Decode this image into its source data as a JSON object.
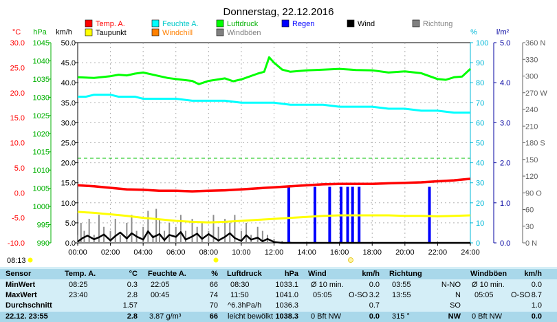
{
  "chart_data": {
    "type": "line",
    "title": "Donnerstag, 22.12.2016",
    "legend": [
      {
        "name": "Temp. A.",
        "color": "#ff0000"
      },
      {
        "name": "Feuchte A.",
        "color": "#00ffff"
      },
      {
        "name": "Luftdruck",
        "color": "#00ff00"
      },
      {
        "name": "Regen",
        "color": "#0000ff"
      },
      {
        "name": "Wind",
        "color": "#000000"
      },
      {
        "name": "Richtung",
        "color": "#808080"
      },
      {
        "name": "Taupunkt",
        "color": "#ffff00"
      },
      {
        "name": "Windchill",
        "color": "#ff8000"
      },
      {
        "name": "Windböen",
        "color": "#808080"
      }
    ],
    "axes": {
      "temp": {
        "unit": "°C",
        "ticks": [
          "30.0",
          "25.0",
          "20.0",
          "15.0",
          "10.0",
          "5.0",
          "0.0",
          "-5.0",
          "-10.0"
        ],
        "range": [
          -10,
          30
        ],
        "color": "#ff0000"
      },
      "pressure": {
        "unit": "hPa",
        "ticks": [
          "1045",
          "1040",
          "1035",
          "1030",
          "1025",
          "1020",
          "1015",
          "1010",
          "1005",
          "1000",
          "995",
          "990"
        ],
        "range": [
          990,
          1045
        ],
        "color": "#00c000"
      },
      "wind": {
        "unit": "km/h",
        "ticks": [
          "50.0",
          "45.0",
          "40.0",
          "35.0",
          "30.0",
          "25.0",
          "20.0",
          "15.0",
          "10.0",
          "5.0",
          "0.0"
        ],
        "range": [
          0,
          50
        ],
        "color": "#000000"
      },
      "humidity": {
        "unit": "%",
        "ticks": [
          "100",
          "90",
          "80",
          "70",
          "60",
          "50",
          "40",
          "30",
          "20",
          "10",
          "0"
        ],
        "range": [
          0,
          100
        ],
        "color": "#00c0c0"
      },
      "rain": {
        "unit": "l/m²",
        "ticks": [
          "5.0",
          "4.0",
          "3.0",
          "2.0",
          "1.0",
          "0.0"
        ],
        "range": [
          0,
          5
        ],
        "color": "#0000a0"
      },
      "direction": {
        "ticks": [
          "360 N",
          "330",
          "300",
          "270 W",
          "240",
          "210",
          "180 S",
          "150",
          "120",
          "90 O",
          "60",
          "30",
          "0 N"
        ],
        "range": [
          0,
          360
        ],
        "color": "#606060"
      }
    },
    "x_labels": [
      "00:00",
      "02:00",
      "04:00",
      "06:00",
      "08:00",
      "10:00",
      "12:00",
      "14:00",
      "16:00",
      "18:00",
      "20:00",
      "22:00",
      "24:00"
    ],
    "sunrise": "08:13",
    "reference_line_pressure": 1013.25,
    "series": {
      "luftdruck": {
        "x": [
          0,
          1,
          2,
          2.5,
          3,
          3.5,
          4,
          5,
          5.5,
          6,
          7,
          7.4,
          8,
          9,
          9.5,
          10,
          11,
          11.4,
          11.7,
          12,
          12.5,
          13,
          14,
          15,
          16,
          17,
          18,
          19,
          20,
          21,
          22,
          22.5,
          23,
          23.5,
          24
        ],
        "y": [
          1035.5,
          1035.3,
          1035.8,
          1036.2,
          1036.0,
          1036.5,
          1036.8,
          1035.8,
          1035.3,
          1035.0,
          1034.5,
          1033.6,
          1034.5,
          1035.2,
          1034.4,
          1034.9,
          1036.5,
          1037.0,
          1041.0,
          1039.5,
          1037.6,
          1037.0,
          1037.4,
          1037.6,
          1037.8,
          1037.5,
          1037.4,
          1036.8,
          1037.1,
          1036.6,
          1035.0,
          1034.8,
          1035.5,
          1035.7,
          1037.8
        ]
      },
      "feuchte": {
        "x": [
          0,
          0.5,
          1,
          1.5,
          2,
          2.5,
          3,
          3.5,
          4,
          5,
          6,
          7,
          8,
          9,
          10,
          11,
          12,
          13,
          14,
          15,
          16,
          17,
          18,
          19,
          20,
          21,
          22,
          23,
          24
        ],
        "y": [
          73,
          73,
          74,
          74,
          74,
          73,
          73,
          73,
          72,
          72,
          72,
          71,
          71,
          71,
          70,
          70,
          70,
          69,
          69,
          69,
          68,
          68,
          68,
          67,
          67,
          66,
          66,
          65,
          65
        ]
      },
      "temp": {
        "x": [
          0,
          1,
          2,
          3,
          4,
          5,
          6,
          7,
          8,
          9,
          10,
          11,
          12,
          13,
          14,
          15,
          16,
          17,
          18,
          19,
          20,
          21,
          22,
          23,
          24
        ],
        "y": [
          1.5,
          1.3,
          1.0,
          0.7,
          0.6,
          0.4,
          0.4,
          0.3,
          0.4,
          0.5,
          0.7,
          0.9,
          1.1,
          1.3,
          1.5,
          1.7,
          1.8,
          1.8,
          1.8,
          1.9,
          2.0,
          2.1,
          2.3,
          2.5,
          2.8
        ]
      },
      "taupunkt": {
        "x": [
          0,
          1,
          2,
          3,
          4,
          5,
          6,
          7,
          8,
          9,
          10,
          11,
          12,
          13,
          14,
          15,
          16,
          17,
          18,
          19,
          20,
          21,
          22,
          23,
          24
        ],
        "y": [
          -3.8,
          -4.0,
          -4.3,
          -4.6,
          -5.0,
          -5.3,
          -5.6,
          -5.8,
          -5.9,
          -5.8,
          -5.6,
          -5.4,
          -5.2,
          -5.0,
          -4.8,
          -4.6,
          -4.5,
          -4.5,
          -4.5,
          -4.5,
          -4.6,
          -4.6,
          -4.7,
          -4.6,
          -4.5
        ]
      },
      "wind": {
        "x": [
          0,
          0.3,
          0.6,
          1,
          1.3,
          1.6,
          2,
          2.3,
          2.6,
          3,
          3.3,
          3.6,
          4,
          4.3,
          4.6,
          5,
          5.3,
          5.6,
          6,
          6.3,
          6.6,
          7,
          7.3,
          7.6,
          8,
          8.3,
          8.6,
          9,
          9.3,
          9.6,
          10,
          10.3,
          10.6,
          11,
          11.3,
          11.6,
          12,
          12.5,
          24
        ],
        "y": [
          0.3,
          1.2,
          1.8,
          0.9,
          1.4,
          2.1,
          0.6,
          1.7,
          2.6,
          1.1,
          2.4,
          1.6,
          0.8,
          2.9,
          1.4,
          2.2,
          0.7,
          2.0,
          1.5,
          2.7,
          0.8,
          1.6,
          2.3,
          1.0,
          2.2,
          1.4,
          0.6,
          1.5,
          2.4,
          1.2,
          0.5,
          1.9,
          0.8,
          1.3,
          0.4,
          1.0,
          0.2,
          0,
          0
        ]
      },
      "windboeen": {
        "x": [
          0,
          0.2,
          0.4,
          0.7,
          1,
          1.3,
          1.6,
          2,
          2.3,
          2.6,
          3,
          3.3,
          3.6,
          4,
          4.3,
          4.6,
          4.8,
          5,
          5.3,
          5.6,
          6,
          6.3,
          6.6,
          7,
          7.3,
          7.6,
          8,
          8.3,
          8.6,
          9,
          9.3,
          9.6,
          10,
          10.3,
          10.6,
          11,
          11.3,
          11.6,
          12,
          12.5,
          13,
          14,
          16,
          18,
          24
        ],
        "y": [
          2,
          5,
          3,
          6,
          2,
          7,
          4,
          3,
          6,
          2,
          5,
          7,
          3,
          4,
          8,
          2,
          8.5,
          6,
          3,
          5,
          4,
          7,
          3,
          6,
          4,
          5,
          3,
          7,
          4,
          6,
          5,
          7,
          3,
          5,
          2,
          4,
          3,
          2,
          1,
          0.5,
          0.3,
          0,
          0,
          0,
          0
        ]
      },
      "regen": {
        "hours": [
          12.9,
          14.5,
          15.4,
          16.1,
          16.5,
          16.8,
          17.2,
          21.5
        ],
        "values": [
          1.4,
          1.4,
          1.4,
          1.4,
          1.4,
          1.4,
          1.4,
          1.4
        ]
      }
    }
  },
  "stats": {
    "sensor_header": "Sensor",
    "row_labels": [
      "MinWert",
      "MaxWert",
      "Durchschnitt",
      "22.12. 23:55"
    ],
    "temp": {
      "label": "Temp. A.",
      "unit": "°C",
      "min_time": "08:25",
      "min": "0.3",
      "max_time": "23:40",
      "max": "2.8",
      "avg": "1.57",
      "cur": "2.8"
    },
    "feuchte": {
      "label": "Feuchte A.",
      "unit": "%",
      "min_time": "22:05",
      "min": "66",
      "max_time": "00:45",
      "max": "74",
      "avg": "70",
      "cur_note": "3.87 g/m³",
      "cur": "66"
    },
    "luftdruck": {
      "label": "Luftdruck",
      "unit": "hPa",
      "min_time": "08:30",
      "min": "1033.1",
      "max_time": "11:50",
      "max": "1041.0",
      "avg_note": "^6.3hPa/h",
      "avg": "1036.3",
      "cur_note": "leicht bewölkt",
      "cur": "1038.3"
    },
    "wind": {
      "label": "Wind",
      "unit": "km/h",
      "min_time": "Ø 10 min.",
      "min": "0.0",
      "max_time": "05:05",
      "max_dir": "O-SO",
      "max": "3.2",
      "avg": "0.7",
      "cur_note": "0 Bft NW",
      "cur": "0.0"
    },
    "richtung": {
      "label": "Richtung",
      "min_time": "03:55",
      "min": "N-NO",
      "max_time": "13:55",
      "max": "N",
      "avg": "SO",
      "cur_note": "315 °",
      "cur": "NW"
    },
    "windboeen": {
      "label": "Windböen",
      "unit": "km/h",
      "min_time": "Ø 10 min.",
      "min": "0.0",
      "max_time": "05:05",
      "max_dir": "O-SO",
      "max": "8.7",
      "avg": "1.0",
      "cur_note": "0 Bft NW",
      "cur": "0.0"
    }
  }
}
